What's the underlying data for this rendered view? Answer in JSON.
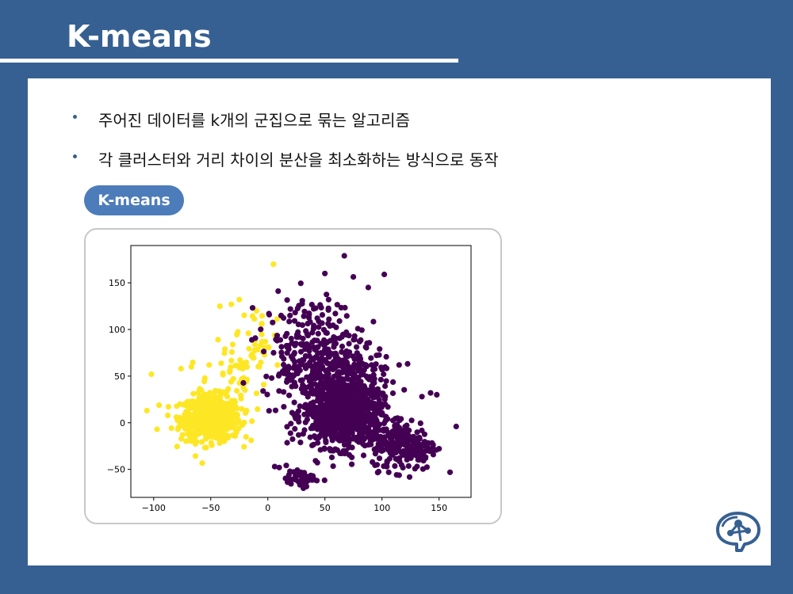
{
  "slide": {
    "title": "K-means",
    "bullets": [
      "주어진 데이터를 k개의 군집으로 묶는 알고리즘",
      "각 클러스터와 거리 차이의 분산을 최소화하는 방식으로 동작"
    ],
    "tag_label": "K-means",
    "logo_icon": "brain-network-icon"
  },
  "colors": {
    "background": "#376092",
    "panel": "#ffffff",
    "accent": "#4d7cba",
    "cluster_purple": "#440154",
    "cluster_yellow": "#fde725"
  },
  "chart_data": {
    "type": "scatter",
    "title": "",
    "xlabel": "",
    "ylabel": "",
    "xlim": [
      -120,
      178
    ],
    "ylim": [
      -80,
      190
    ],
    "xticks": [
      -100,
      -50,
      0,
      50,
      100,
      150
    ],
    "yticks": [
      -50,
      0,
      50,
      100,
      150
    ],
    "xtick_labels": [
      "−100",
      "−50",
      "0",
      "50",
      "100",
      "150"
    ],
    "ytick_labels": [
      "−50",
      "0",
      "50",
      "100",
      "150"
    ],
    "grid": false,
    "series": [
      {
        "color": "#fde725",
        "points_summary": "dense cluster centered near (-50, 5), spread x -105 to 5, y -25 to 60, with sparse outliers",
        "clusters": [
          {
            "cx": -50,
            "cy": 5,
            "sx": 13,
            "sy": 12,
            "n": 650
          },
          {
            "cx": -25,
            "cy": 60,
            "sx": 14,
            "sy": 20,
            "n": 60
          },
          {
            "cx": -5,
            "cy": 100,
            "sx": 6,
            "sy": 14,
            "n": 20
          }
        ],
        "outliers": [
          [
            -102,
            52
          ],
          [
            -106,
            13
          ],
          [
            -97,
            -7
          ],
          [
            5,
            170
          ],
          [
            -25,
            132
          ],
          [
            -32,
            127
          ],
          [
            -42,
            125
          ],
          [
            -67,
            60
          ],
          [
            -76,
            58
          ],
          [
            -10,
            120
          ]
        ]
      },
      {
        "color": "#440154",
        "points_summary": "large cluster centered near (65, 10), plus lobe near (120, -25) and upper lobe near (35, 80); small group near (30, -60)",
        "clusters": [
          {
            "cx": 65,
            "cy": 10,
            "sx": 17,
            "sy": 18,
            "n": 900
          },
          {
            "cx": 120,
            "cy": -25,
            "sx": 14,
            "sy": 13,
            "n": 220
          },
          {
            "cx": 40,
            "cy": 80,
            "sx": 22,
            "sy": 28,
            "n": 260
          },
          {
            "cx": 30,
            "cy": -60,
            "sx": 7,
            "sy": 4,
            "n": 45
          },
          {
            "cx": 60,
            "cy": 50,
            "sx": 25,
            "sy": 18,
            "n": 180
          }
        ],
        "outliers": [
          [
            67,
            179
          ],
          [
            102,
            159
          ],
          [
            50,
            160
          ],
          [
            88,
            145
          ],
          [
            165,
            -4
          ],
          [
            148,
            30
          ],
          [
            135,
            28
          ],
          [
            115,
            62
          ],
          [
            6,
            -47
          ],
          [
            10,
            -48
          ]
        ]
      }
    ]
  }
}
